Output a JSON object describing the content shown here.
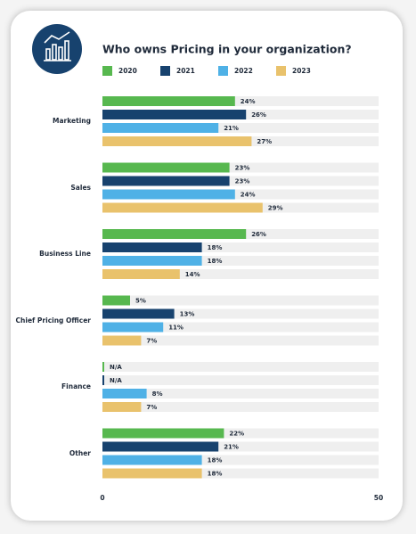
{
  "chart_data": {
    "type": "bar",
    "orientation": "horizontal",
    "title": "Who owns Pricing in your organization?",
    "categories": [
      "Marketing",
      "Sales",
      "Business Line",
      "Chief Pricing Officer",
      "Finance",
      "Other"
    ],
    "series": [
      {
        "name": "2020",
        "color": "#57b84f",
        "values": [
          24,
          23,
          26,
          5,
          null,
          22
        ],
        "value_labels": [
          "24%",
          "23%",
          "26%",
          "5%",
          "N/A",
          "22%"
        ]
      },
      {
        "name": "2021",
        "color": "#17426e",
        "values": [
          26,
          23,
          18,
          13,
          null,
          21
        ],
        "value_labels": [
          "26%",
          "23%",
          "18%",
          "13%",
          "N/A",
          "21%"
        ]
      },
      {
        "name": "2022",
        "color": "#4fb1e6",
        "values": [
          21,
          24,
          18,
          11,
          8,
          18
        ],
        "value_labels": [
          "21%",
          "24%",
          "18%",
          "11%",
          "8%",
          "18%"
        ]
      },
      {
        "name": "2023",
        "color": "#e9c26c",
        "values": [
          27,
          29,
          14,
          7,
          7,
          18
        ],
        "value_labels": [
          "27%",
          "29%",
          "14%",
          "7%",
          "7%",
          "18%"
        ]
      }
    ],
    "xlim": [
      0,
      50
    ],
    "xticks": [
      0,
      50
    ]
  }
}
